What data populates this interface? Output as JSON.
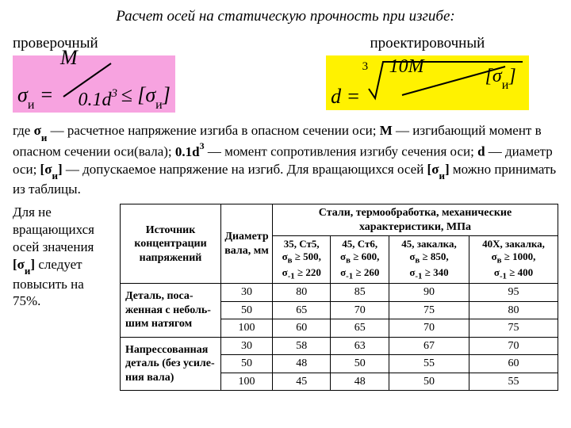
{
  "title": "Расчет осей на статическую прочность при изгибе:",
  "subheads": {
    "left": "проверочный",
    "right": "проектировочный"
  },
  "colors": {
    "pink": "#f7a3e0",
    "yellow": "#fff200",
    "text": "#000000",
    "bg": "#ffffff"
  },
  "formulas": {
    "left": {
      "lhs": "σ",
      "lhs_sub": "и",
      "eq": " = ",
      "frac_num": "M",
      "frac_den_a": "0.1d",
      "frac_den_sup": "3",
      "cmp": " ≤ ",
      "rhs_open": "[",
      "rhs": "σ",
      "rhs_sub": "и",
      "rhs_close": "]"
    },
    "right": {
      "lhs": "d",
      "eq": " = ",
      "root_index": "3",
      "num_a": "10M",
      "den_open": "[",
      "den": "σ",
      "den_sub": "и",
      "den_close": "]"
    }
  },
  "explain": {
    "p1a": "где ",
    "s1b": "σ",
    "s1sub": "и",
    "p1b": " — расчетное напряжение изгиба в опасном сечении оси; ",
    "s2": "M",
    "p1c": " — изгибающий момент в опасном сечении оси(вала); ",
    "s3": "0.1d",
    "s3sup": "3",
    "p1d": " — момент сопротивления изгибу сечения оси; ",
    "s4": "d",
    "p1e": " — диаметр оси; ",
    "s5a": "[σ",
    "s5sub": "и",
    "s5b": "]",
    "p1f": " — допускаемое напряжение на изгиб. Для вращающихся осей ",
    "s6a": "[σ",
    "s6sub": "и",
    "s6b": "]",
    "p1g": " можно принимать из таблицы."
  },
  "left_note": {
    "a": "Для не вращающихся осей значения ",
    "b1": "[σ",
    "bsub": "и",
    "b2": "]",
    "c": " следует повысить на 75%."
  },
  "table": {
    "head": {
      "src": "Источник концентрации напряжений",
      "diam": "Диаметр вала, мм",
      "group": "Стали, термообработка, механические характеристики, МПа"
    },
    "steel_cols": [
      {
        "l1": "35, Ст5,",
        "l2": "σ_в ≥ 500,",
        "l3": "σ_-1 ≥ 220"
      },
      {
        "l1": "45, Ст6,",
        "l2": "σ_в ≥ 600,",
        "l3": "σ_-1 ≥ 260"
      },
      {
        "l1": "45, закалка,",
        "l2": "σ_в ≥ 850,",
        "l3": "σ_-1 ≥ 340"
      },
      {
        "l1": "40Х, закалка,",
        "l2": "σ_в ≥ 1000,",
        "l3": "σ_-1 ≥ 400"
      }
    ],
    "rows": [
      {
        "label": "Деталь, поса-\nженная с неболь-\nшим натягом",
        "diam": [
          "30",
          "50",
          "100"
        ],
        "vals": [
          [
            "80",
            "65",
            "60"
          ],
          [
            "85",
            "70",
            "65"
          ],
          [
            "90",
            "75",
            "70"
          ],
          [
            "95",
            "80",
            "75"
          ]
        ]
      },
      {
        "label": "Напрессованная\nдеталь (без усиле-\nния вала)",
        "diam": [
          "30",
          "50",
          "100"
        ],
        "vals": [
          [
            "58",
            "48",
            "45"
          ],
          [
            "63",
            "50",
            "48"
          ],
          [
            "67",
            "55",
            "50"
          ],
          [
            "70",
            "60",
            "55"
          ]
        ]
      }
    ]
  }
}
